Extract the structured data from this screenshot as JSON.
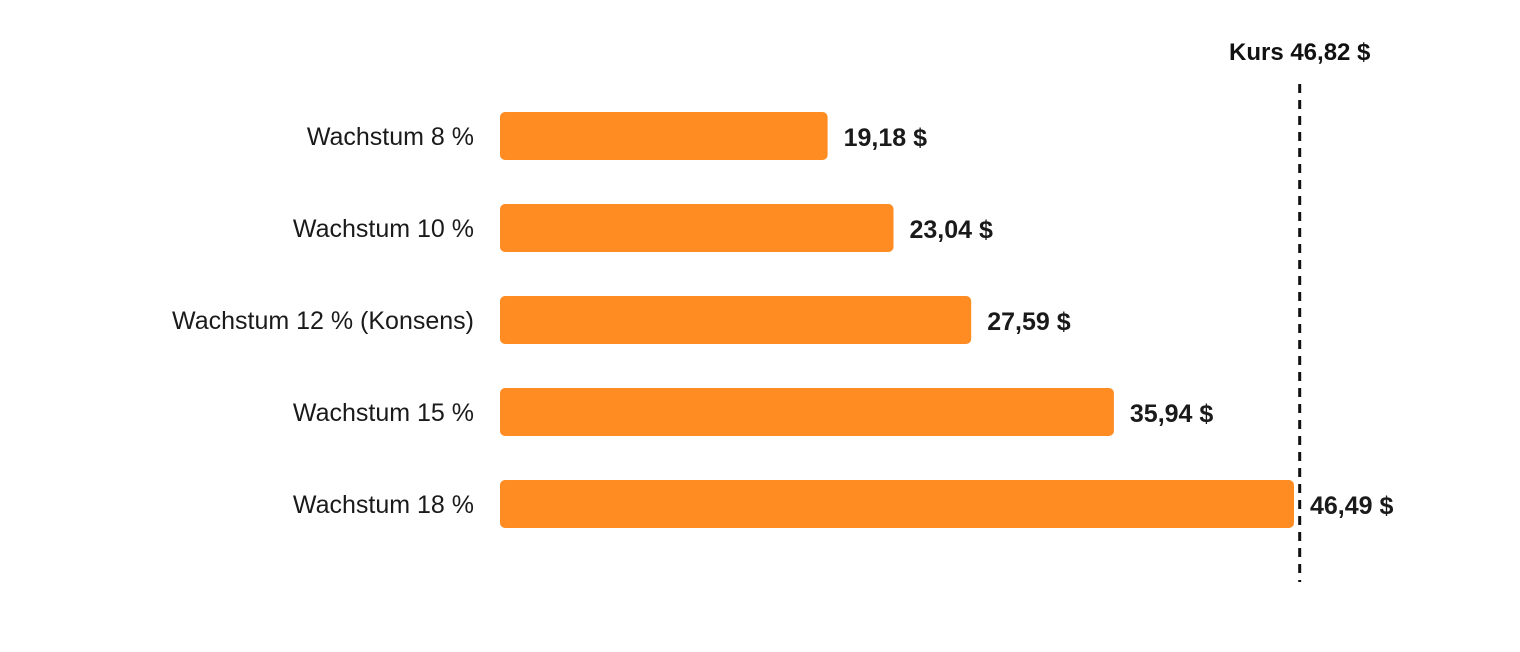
{
  "chart_data": {
    "type": "bar",
    "orientation": "horizontal",
    "categories": [
      "Wachstum 8 %",
      "Wachstum 10 %",
      "Wachstum 12 % (Konsens)",
      "Wachstum 15 %",
      "Wachstum 18 %"
    ],
    "values": [
      19.18,
      23.04,
      27.59,
      35.94,
      46.49
    ],
    "value_labels": [
      "19,18 $",
      "23,04 $",
      "27,59 $",
      "35,94 $",
      "46,49 $"
    ],
    "reference_line": {
      "value": 46.82,
      "label": "Kurs 46,82 $",
      "style": "dashed",
      "color": "#111111"
    },
    "bar_color": "#FF8C22",
    "title": "",
    "xlabel": "",
    "ylabel": "",
    "xlim": [
      0,
      46.82
    ],
    "grid": false,
    "legend": "none"
  }
}
